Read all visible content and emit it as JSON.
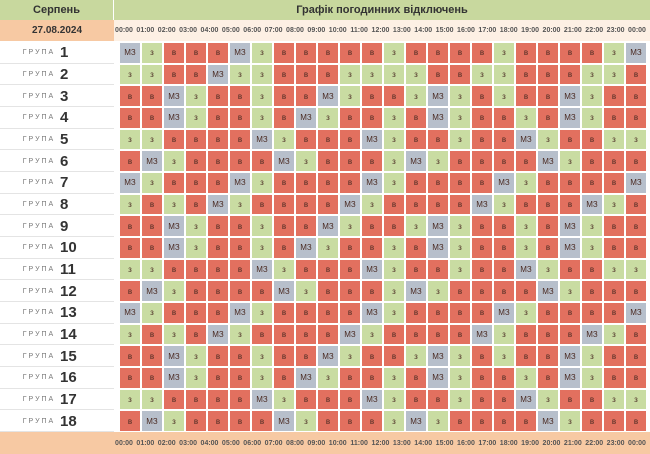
{
  "header": {
    "month": "Серпень",
    "title": "Графік погодинних відключень",
    "date": "27.08.2024"
  },
  "hours": [
    "00:00",
    "01:00",
    "02:00",
    "03:00",
    "04:00",
    "05:00",
    "06:00",
    "07:00",
    "08:00",
    "09:00",
    "10:00",
    "11:00",
    "12:00",
    "13:00",
    "14:00",
    "15:00",
    "16:00",
    "17:00",
    "18:00",
    "19:00",
    "20:00",
    "21:00",
    "22:00",
    "23:00",
    "00:00"
  ],
  "cell_colors": {
    "в": "#e2705f",
    "з": "#c9dca2",
    "МЗ": "#b7bfcb"
  },
  "groups": [
    {
      "label": "ГРУПА",
      "number": "1",
      "cells": [
        "МЗ",
        "з",
        "в",
        "в",
        "в",
        "МЗ",
        "з",
        "в",
        "в",
        "в",
        "в",
        "в",
        "з",
        "в",
        "в",
        "в",
        "в",
        "з",
        "в",
        "в",
        "в",
        "в",
        "з",
        "МЗ"
      ]
    },
    {
      "label": "ГРУПА",
      "number": "2",
      "cells": [
        "з",
        "з",
        "в",
        "в",
        "МЗ",
        "з",
        "з",
        "в",
        "в",
        "в",
        "з",
        "з",
        "з",
        "з",
        "в",
        "в",
        "з",
        "з",
        "в",
        "в",
        "в",
        "з",
        "з",
        "в"
      ]
    },
    {
      "label": "ГРУПА",
      "number": "3",
      "cells": [
        "в",
        "в",
        "МЗ",
        "з",
        "в",
        "в",
        "з",
        "в",
        "в",
        "МЗ",
        "з",
        "в",
        "в",
        "з",
        "МЗ",
        "з",
        "в",
        "з",
        "в",
        "в",
        "МЗ",
        "з",
        "в",
        "в"
      ]
    },
    {
      "label": "ГРУПА",
      "number": "4",
      "cells": [
        "в",
        "в",
        "МЗ",
        "з",
        "в",
        "в",
        "з",
        "в",
        "МЗ",
        "з",
        "в",
        "в",
        "з",
        "в",
        "МЗ",
        "з",
        "в",
        "в",
        "з",
        "в",
        "МЗ",
        "з",
        "в",
        "в"
      ]
    },
    {
      "label": "ГРУПА",
      "number": "5",
      "cells": [
        "з",
        "з",
        "в",
        "в",
        "в",
        "в",
        "МЗ",
        "з",
        "в",
        "в",
        "в",
        "МЗ",
        "з",
        "в",
        "в",
        "з",
        "в",
        "в",
        "МЗ",
        "з",
        "в",
        "в",
        "з",
        "з"
      ]
    },
    {
      "label": "ГРУПА",
      "number": "6",
      "cells": [
        "в",
        "МЗ",
        "з",
        "в",
        "в",
        "в",
        "в",
        "МЗ",
        "з",
        "в",
        "в",
        "в",
        "з",
        "МЗ",
        "з",
        "в",
        "в",
        "в",
        "в",
        "МЗ",
        "з",
        "в",
        "в",
        "в"
      ]
    },
    {
      "label": "ГРУПА",
      "number": "7",
      "cells": [
        "МЗ",
        "з",
        "в",
        "в",
        "в",
        "МЗ",
        "з",
        "в",
        "в",
        "в",
        "в",
        "МЗ",
        "з",
        "в",
        "в",
        "в",
        "в",
        "МЗ",
        "з",
        "в",
        "в",
        "в",
        "в",
        "МЗ"
      ]
    },
    {
      "label": "ГРУПА",
      "number": "8",
      "cells": [
        "з",
        "в",
        "з",
        "в",
        "МЗ",
        "з",
        "в",
        "в",
        "в",
        "в",
        "МЗ",
        "з",
        "в",
        "в",
        "в",
        "в",
        "МЗ",
        "з",
        "в",
        "в",
        "в",
        "МЗ",
        "з",
        "в"
      ]
    },
    {
      "label": "ГРУПА",
      "number": "9",
      "cells": [
        "в",
        "в",
        "МЗ",
        "з",
        "в",
        "в",
        "з",
        "в",
        "в",
        "МЗ",
        "з",
        "в",
        "в",
        "з",
        "МЗ",
        "з",
        "в",
        "в",
        "з",
        "в",
        "МЗ",
        "з",
        "в",
        "в"
      ]
    },
    {
      "label": "ГРУПА",
      "number": "10",
      "cells": [
        "в",
        "в",
        "МЗ",
        "з",
        "в",
        "в",
        "з",
        "в",
        "МЗ",
        "з",
        "в",
        "в",
        "з",
        "в",
        "МЗ",
        "з",
        "в",
        "в",
        "з",
        "в",
        "МЗ",
        "з",
        "в",
        "в"
      ]
    },
    {
      "label": "ГРУПА",
      "number": "11",
      "cells": [
        "з",
        "з",
        "в",
        "в",
        "в",
        "в",
        "МЗ",
        "з",
        "в",
        "в",
        "в",
        "МЗ",
        "з",
        "в",
        "в",
        "з",
        "в",
        "в",
        "МЗ",
        "з",
        "в",
        "в",
        "з",
        "з"
      ]
    },
    {
      "label": "ГРУПА",
      "number": "12",
      "cells": [
        "в",
        "МЗ",
        "з",
        "в",
        "в",
        "в",
        "в",
        "МЗ",
        "з",
        "в",
        "в",
        "в",
        "з",
        "МЗ",
        "з",
        "в",
        "в",
        "в",
        "в",
        "МЗ",
        "з",
        "в",
        "в",
        "в"
      ]
    },
    {
      "label": "ГРУПА",
      "number": "13",
      "cells": [
        "МЗ",
        "з",
        "в",
        "в",
        "в",
        "МЗ",
        "з",
        "в",
        "в",
        "в",
        "в",
        "МЗ",
        "з",
        "в",
        "в",
        "в",
        "в",
        "МЗ",
        "з",
        "в",
        "в",
        "в",
        "в",
        "МЗ"
      ]
    },
    {
      "label": "ГРУПА",
      "number": "14",
      "cells": [
        "з",
        "в",
        "з",
        "в",
        "МЗ",
        "з",
        "в",
        "в",
        "в",
        "в",
        "МЗ",
        "з",
        "в",
        "в",
        "в",
        "в",
        "МЗ",
        "з",
        "в",
        "в",
        "в",
        "МЗ",
        "з",
        "в"
      ]
    },
    {
      "label": "ГРУПА",
      "number": "15",
      "cells": [
        "в",
        "в",
        "МЗ",
        "з",
        "в",
        "в",
        "з",
        "в",
        "в",
        "МЗ",
        "з",
        "в",
        "в",
        "з",
        "МЗ",
        "з",
        "в",
        "з",
        "в",
        "в",
        "МЗ",
        "з",
        "в",
        "в"
      ]
    },
    {
      "label": "ГРУПА",
      "number": "16",
      "cells": [
        "в",
        "в",
        "МЗ",
        "з",
        "в",
        "в",
        "з",
        "в",
        "МЗ",
        "з",
        "в",
        "в",
        "з",
        "в",
        "МЗ",
        "з",
        "в",
        "в",
        "з",
        "в",
        "МЗ",
        "з",
        "в",
        "в"
      ]
    },
    {
      "label": "ГРУПА",
      "number": "17",
      "cells": [
        "з",
        "з",
        "в",
        "в",
        "в",
        "в",
        "МЗ",
        "з",
        "в",
        "в",
        "в",
        "МЗ",
        "з",
        "в",
        "в",
        "з",
        "в",
        "в",
        "МЗ",
        "з",
        "в",
        "в",
        "з",
        "з"
      ]
    },
    {
      "label": "ГРУПА",
      "number": "18",
      "cells": [
        "в",
        "МЗ",
        "з",
        "в",
        "в",
        "в",
        "в",
        "МЗ",
        "з",
        "в",
        "в",
        "в",
        "з",
        "МЗ",
        "з",
        "в",
        "в",
        "в",
        "в",
        "МЗ",
        "з",
        "в",
        "в",
        "в"
      ]
    }
  ]
}
